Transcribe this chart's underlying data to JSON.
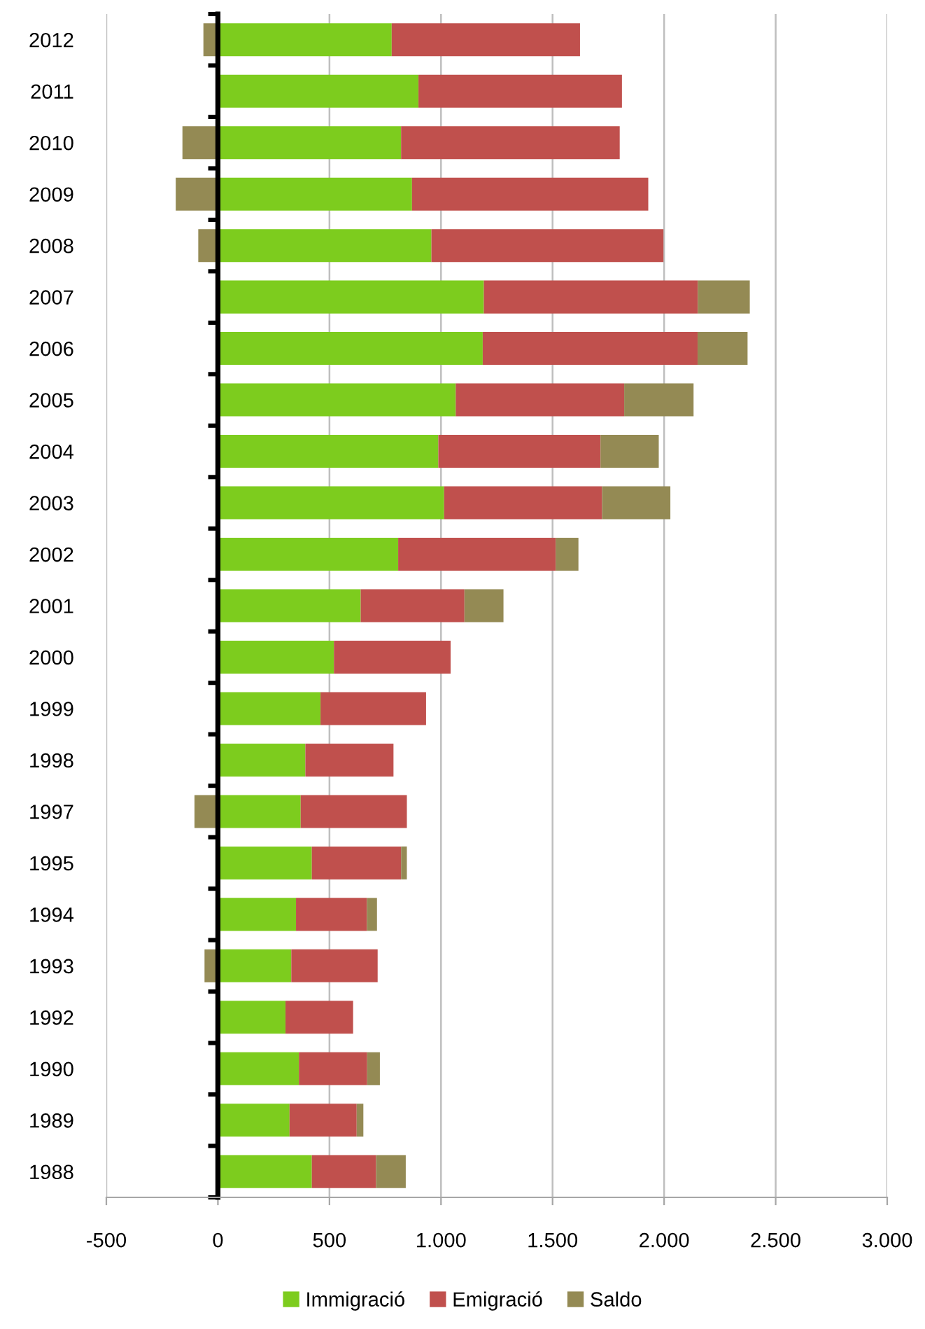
{
  "chart_data": {
    "type": "bar",
    "orientation": "horizontal",
    "stacked": true,
    "categories": [
      "2012",
      "2011",
      "2010",
      "2009",
      "2008",
      "2007",
      "2006",
      "2005",
      "2004",
      "2003",
      "2002",
      "2001",
      "2000",
      "1999",
      "1998",
      "1997",
      "1995",
      "1994",
      "1993",
      "1992",
      "1990",
      "1989",
      "1988"
    ],
    "series": [
      {
        "name": "Immigració",
        "color": "#7dcc1e",
        "values": [
          779,
          899,
          821,
          870,
          957,
          1192,
          1187,
          1066,
          988,
          1014,
          808,
          640,
          520,
          460,
          392,
          371,
          421,
          350,
          329,
          303,
          363,
          321,
          421
        ]
      },
      {
        "name": "Emigració",
        "color": "#c0504d",
        "values": [
          844,
          912,
          980,
          1059,
          1040,
          959,
          963,
          755,
          727,
          708,
          706,
          465,
          523,
          473,
          395,
          476,
          400,
          318,
          387,
          303,
          306,
          301,
          288
        ]
      },
      {
        "name": "Saldo",
        "color": "#948a54",
        "values": [
          -65,
          null,
          -159,
          -189,
          -88,
          233,
          224,
          311,
          261,
          306,
          102,
          175,
          null,
          null,
          null,
          -105,
          26,
          45,
          -60,
          null,
          57,
          30,
          133
        ]
      }
    ],
    "xlim": [
      -500,
      3000
    ],
    "xticks": [
      -500,
      0,
      500,
      {
        "value": 1000,
        "label": "1.000"
      },
      {
        "value": 1500,
        "label": "1.500"
      },
      {
        "value": 2000,
        "label": "2.000"
      },
      {
        "value": 2500,
        "label": "2.500"
      },
      {
        "value": 3000,
        "label": "3.000"
      }
    ],
    "grid": "x",
    "legend": "bottom"
  }
}
